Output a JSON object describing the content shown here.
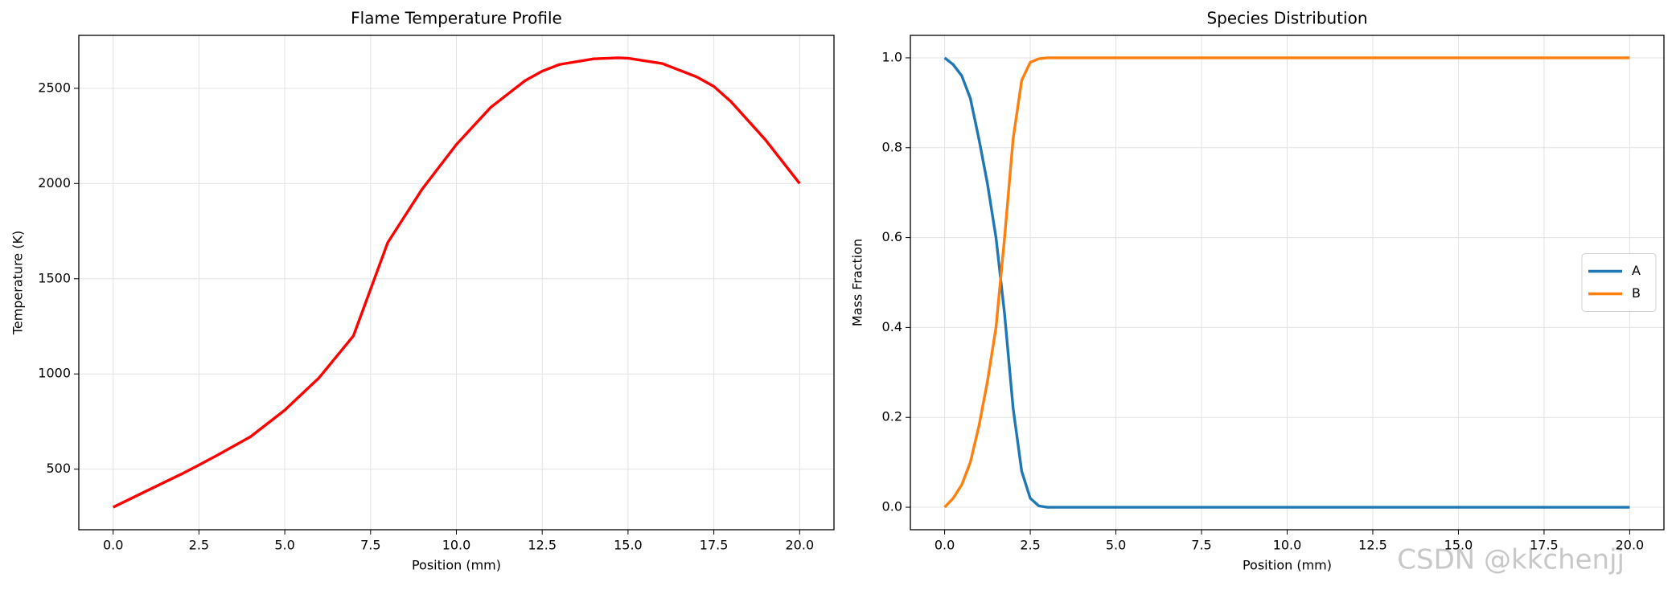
{
  "chart_data": [
    {
      "type": "line",
      "title": "Flame Temperature Profile",
      "x_label": "Position (mm)",
      "y_label": "Temperature (K)",
      "x": [
        0,
        1,
        2,
        2.5,
        3,
        4,
        5,
        6,
        7,
        7.5,
        8,
        9,
        10,
        11,
        12,
        12.5,
        13,
        14,
        14.7,
        15,
        16,
        17,
        17.5,
        18,
        19,
        20
      ],
      "values": [
        300,
        388,
        475,
        522,
        570,
        670,
        810,
        980,
        1200,
        1445,
        1690,
        1970,
        2205,
        2400,
        2540,
        2590,
        2625,
        2655,
        2660,
        2658,
        2630,
        2560,
        2510,
        2430,
        2230,
        2000
      ],
      "color": "#ff0000",
      "xlim": [
        -1,
        21
      ],
      "ylim": [
        182,
        2778
      ],
      "xticks": [
        {
          "value": 0,
          "label": "0.0"
        },
        {
          "value": 2.5,
          "label": "2.5"
        },
        {
          "value": 5,
          "label": "5.0"
        },
        {
          "value": 7.5,
          "label": "7.5"
        },
        {
          "value": 10,
          "label": "10.0"
        },
        {
          "value": 12.5,
          "label": "12.5"
        },
        {
          "value": 15,
          "label": "15.0"
        },
        {
          "value": 17.5,
          "label": "17.5"
        },
        {
          "value": 20,
          "label": "20.0"
        }
      ],
      "yticks": [
        500,
        1000,
        1500,
        2000,
        2500
      ],
      "grid": true
    },
    {
      "type": "line",
      "title": "Species Distribution",
      "x_label": "Position (mm)",
      "y_label": "Mass Fraction",
      "x": [
        0,
        0.25,
        0.5,
        0.75,
        1,
        1.25,
        1.5,
        1.75,
        2,
        2.25,
        2.5,
        2.75,
        3,
        5,
        10,
        15,
        20
      ],
      "series": [
        {
          "name": "A",
          "color": "#1f77b4",
          "values": [
            1,
            0.985,
            0.96,
            0.91,
            0.82,
            0.72,
            0.6,
            0.43,
            0.22,
            0.08,
            0.02,
            0.003,
            0,
            0,
            0,
            0,
            0
          ]
        },
        {
          "name": "B",
          "color": "#ff7f0e",
          "values": [
            0,
            0.02,
            0.05,
            0.1,
            0.18,
            0.28,
            0.4,
            0.6,
            0.82,
            0.95,
            0.99,
            0.998,
            1,
            1,
            1,
            1,
            1
          ]
        }
      ],
      "xlim": [
        -1,
        21
      ],
      "ylim": [
        -0.05,
        1.05
      ],
      "xticks": [
        {
          "value": 0,
          "label": "0.0"
        },
        {
          "value": 2.5,
          "label": "2.5"
        },
        {
          "value": 5,
          "label": "5.0"
        },
        {
          "value": 7.5,
          "label": "7.5"
        },
        {
          "value": 10,
          "label": "10.0"
        },
        {
          "value": 12.5,
          "label": "12.5"
        },
        {
          "value": 15,
          "label": "15.0"
        },
        {
          "value": 17.5,
          "label": "17.5"
        },
        {
          "value": 20,
          "label": "20.0"
        }
      ],
      "yticks": [
        {
          "value": 0,
          "label": "0.0"
        },
        {
          "value": 0.2,
          "label": "0.2"
        },
        {
          "value": 0.4,
          "label": "0.4"
        },
        {
          "value": 0.6,
          "label": "0.6"
        },
        {
          "value": 0.8,
          "label": "0.8"
        },
        {
          "value": 1,
          "label": "1.0"
        }
      ],
      "grid": true,
      "legend": "center right"
    }
  ],
  "watermark": "CSDN @kkchenjj"
}
